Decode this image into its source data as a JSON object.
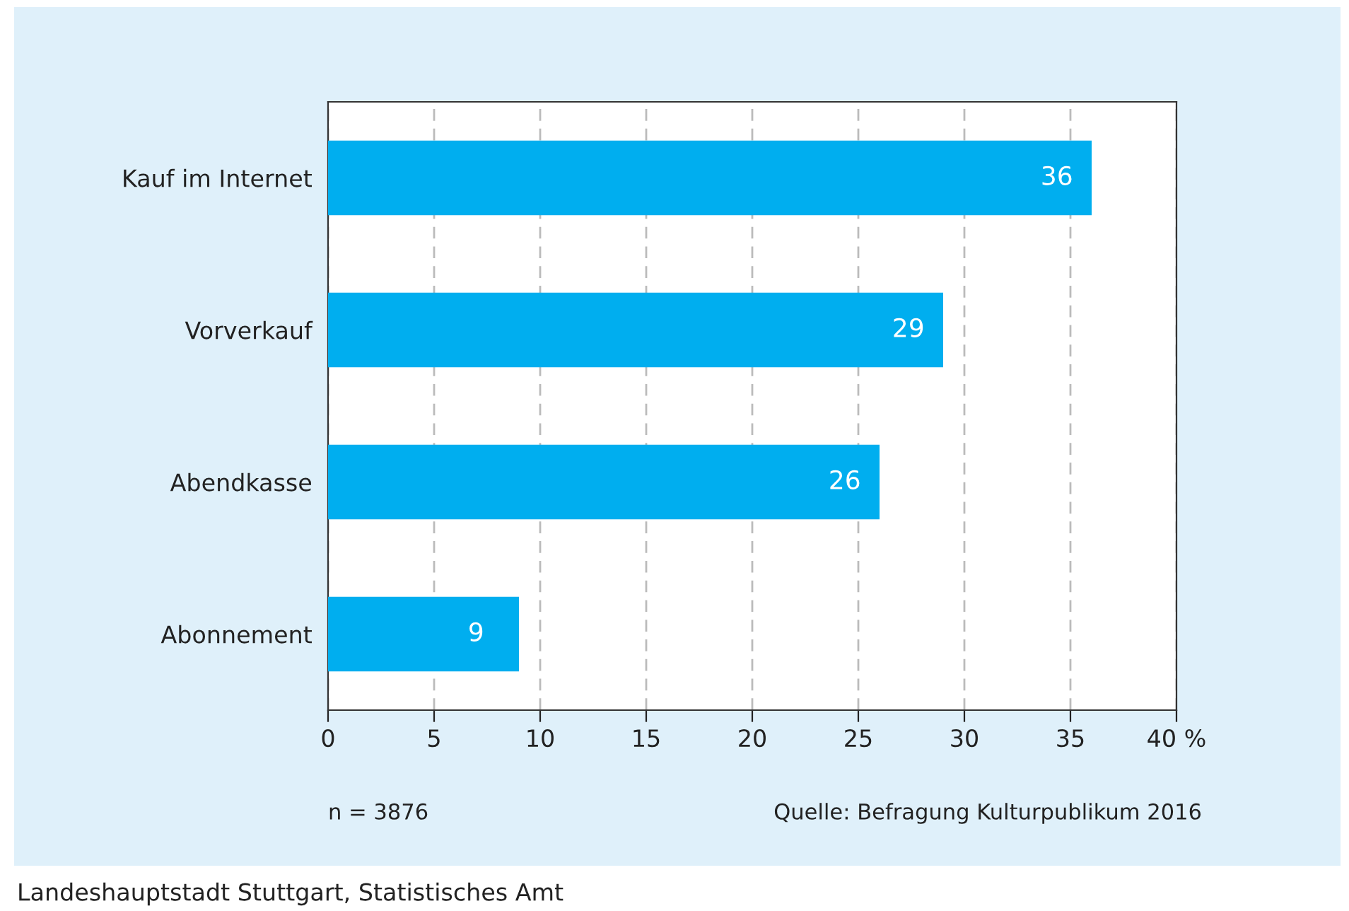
{
  "chart_data": {
    "type": "bar",
    "orientation": "horizontal",
    "categories": [
      "Kauf im Internet",
      "Vorverkauf",
      "Abendkasse",
      "Abonnement"
    ],
    "values": [
      36,
      29,
      26,
      9
    ],
    "color": "#00aeef",
    "xlim": [
      0,
      40
    ],
    "xticks": [
      0,
      5,
      10,
      15,
      20,
      25,
      30,
      35,
      {
        "value": 40,
        "label": "40 %"
      }
    ],
    "grid": "x",
    "data_labels": true,
    "annotations": [
      "n = 3876",
      "Quelle: Befragung Kulturpublikum 2016",
      "Landeshauptstadt Stuttgart, Statistisches Amt"
    ]
  }
}
